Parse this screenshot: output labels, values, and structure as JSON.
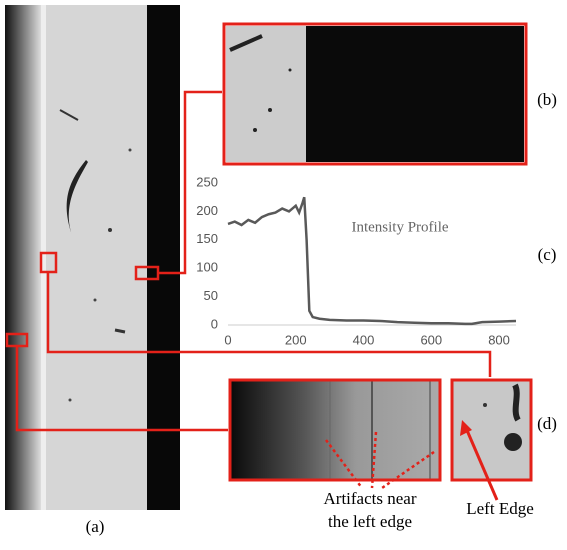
{
  "panel_labels": {
    "a": "(a)",
    "b": "(b)",
    "c": "(c)",
    "d": "(d)"
  },
  "annotations": {
    "artifacts_line1": "Artifacts near",
    "artifacts_line2": "the left edge",
    "left_edge": "Left Edge"
  },
  "chart_data": {
    "type": "line",
    "title": "Intensity Profile",
    "x": [
      0,
      20,
      40,
      60,
      80,
      100,
      120,
      140,
      160,
      180,
      200,
      210,
      220,
      225,
      232,
      240,
      250,
      270,
      300,
      350,
      400,
      450,
      500,
      550,
      600,
      650,
      700,
      720,
      750,
      800,
      850
    ],
    "values": [
      178,
      182,
      176,
      185,
      180,
      190,
      195,
      198,
      205,
      200,
      210,
      198,
      215,
      225,
      150,
      25,
      14,
      11,
      9,
      8,
      8,
      7,
      5,
      4,
      3,
      3,
      2,
      2,
      5,
      6,
      7
    ],
    "color": "#595959",
    "xlim": [
      0,
      850
    ],
    "ylim": [
      0,
      250
    ],
    "xticks": [
      0,
      200,
      400,
      600,
      800
    ],
    "yticks": [
      0,
      50,
      100,
      150,
      200,
      250
    ]
  }
}
